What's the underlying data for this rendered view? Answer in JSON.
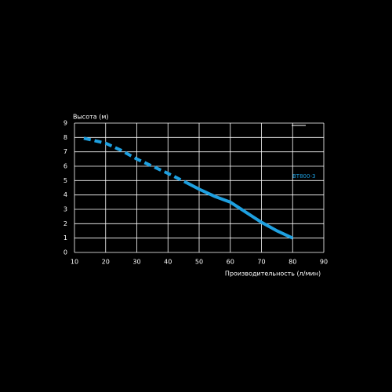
{
  "chart_data": {
    "type": "line",
    "y_label": "Высота (м)",
    "x_label": "Производительность (л/мин)",
    "x": [
      13,
      20,
      25,
      30,
      35,
      40,
      46,
      50,
      55,
      60,
      65,
      70,
      75,
      80
    ],
    "series": [
      {
        "name": "BT800-3",
        "color": "#1ea0e0",
        "values": [
          7.95,
          7.6,
          7.1,
          6.5,
          6.0,
          5.5,
          4.85,
          4.4,
          3.9,
          3.5,
          2.8,
          2.1,
          1.5,
          1.0
        ],
        "dashed_to_x": 46
      }
    ],
    "xlim": [
      10,
      90
    ],
    "xticks": [
      10,
      20,
      30,
      40,
      50,
      60,
      70,
      80,
      90
    ],
    "ylim": [
      0,
      9
    ],
    "yticks": [
      0,
      1,
      2,
      3,
      4,
      5,
      6,
      7,
      8,
      9
    ],
    "grid": true
  }
}
